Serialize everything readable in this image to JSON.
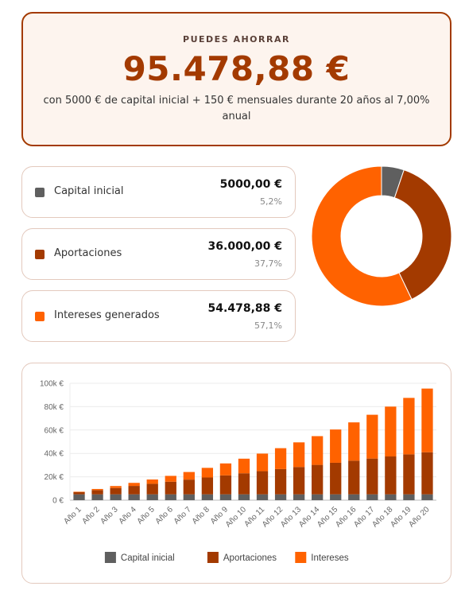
{
  "summary": {
    "label": "PUEDES AHORRAR",
    "amount": "95.478,88 €",
    "description": "con 5000 € de capital inicial + 150 € mensuales durante 20 años al 7,00% anual"
  },
  "stats": {
    "items": [
      {
        "name": "Capital inicial",
        "amount": "5000,00 €",
        "share": 5.2,
        "share_label": "5,2%",
        "color": "#5f5f5f"
      },
      {
        "name": "Aportaciones",
        "amount": "36.000,00 €",
        "share": 37.7,
        "share_label": "37,7%",
        "color": "#a33a00"
      },
      {
        "name": "Intereses generados",
        "amount": "54.478,88 €",
        "share": 57.1,
        "share_label": "57,1%",
        "color": "#ff6200"
      }
    ]
  },
  "chart_data": {
    "type": "bar",
    "stacked": true,
    "categories": [
      "Año 1",
      "Año 2",
      "Año 3",
      "Año 4",
      "Año 5",
      "Año 6",
      "Año 7",
      "Año 8",
      "Año 9",
      "Año 10",
      "Año 11",
      "Año 12",
      "Año 13",
      "Año 14",
      "Año 15",
      "Año 16",
      "Año 17",
      "Año 18",
      "Año 19",
      "Año 20"
    ],
    "series": [
      {
        "name": "Capital inicial",
        "color": "#5f5f5f",
        "values": [
          5000,
          5000,
          5000,
          5000,
          5000,
          5000,
          5000,
          5000,
          5000,
          5000,
          5000,
          5000,
          5000,
          5000,
          5000,
          5000,
          5000,
          5000,
          5000,
          5000
        ]
      },
      {
        "name": "Aportaciones",
        "color": "#a33a00",
        "values": [
          1800,
          3600,
          5400,
          7200,
          9000,
          10800,
          12600,
          14400,
          16200,
          18000,
          19800,
          21600,
          23400,
          25200,
          27000,
          28800,
          30600,
          32400,
          34200,
          36000
        ]
      },
      {
        "name": "Intereses",
        "color": "#ff6200",
        "values": [
          407,
          969,
          1696,
          2599,
          3693,
          4989,
          6501,
          8245,
          10237,
          12495,
          15036,
          17882,
          21053,
          24571,
          28462,
          32751,
          37467,
          42639,
          48299,
          54479
        ]
      }
    ],
    "ylim": [
      0,
      100000
    ],
    "yticks": [
      {
        "value": 0,
        "label": "0 €"
      },
      {
        "value": 20000,
        "label": "20k €"
      },
      {
        "value": 40000,
        "label": "40k €"
      },
      {
        "value": 60000,
        "label": "60k €"
      },
      {
        "value": 80000,
        "label": "80k €"
      },
      {
        "value": 100000,
        "label": "100k €"
      }
    ],
    "grid": true,
    "legend": "bottom"
  }
}
